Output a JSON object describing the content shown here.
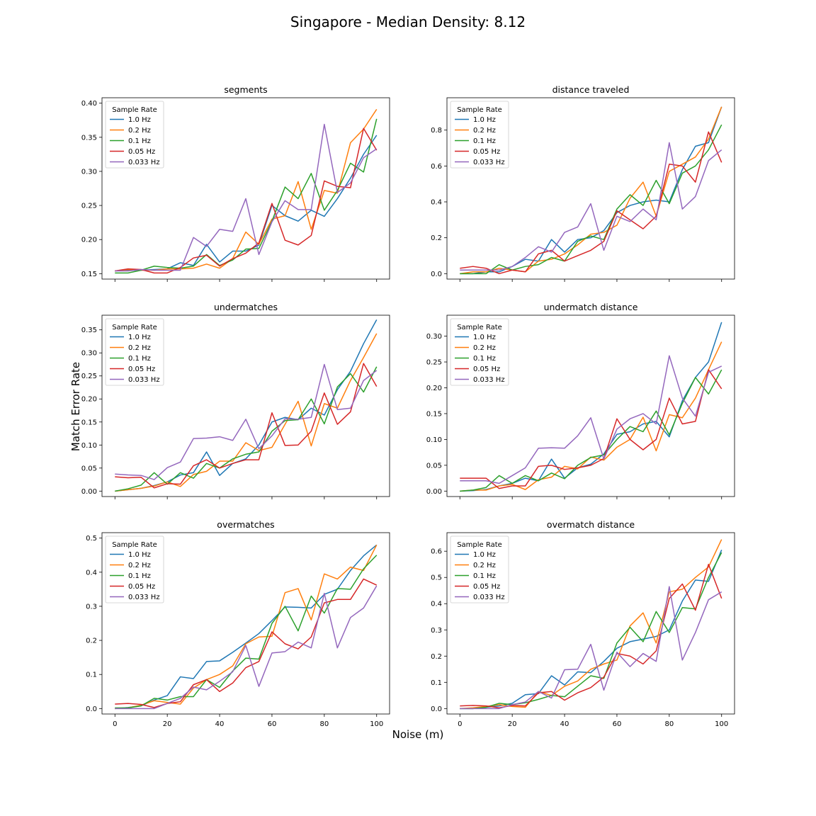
{
  "figure": {
    "title": "Singapore - Median Density: 8.12",
    "xlabel": "Noise (m)",
    "ylabel": "Match Error Rate"
  },
  "colors": {
    "1.0 Hz": "#1f77b4",
    "0.2 Hz": "#ff7f0e",
    "0.1 Hz": "#2ca02c",
    "0.05 Hz": "#d62728",
    "0.033 Hz": "#9467bd"
  },
  "chart_data": [
    {
      "type": "line",
      "title": "segments",
      "x": [
        0,
        5,
        10,
        15,
        20,
        25,
        30,
        35,
        40,
        45,
        50,
        55,
        60,
        65,
        70,
        75,
        80,
        85,
        90,
        95,
        100
      ],
      "xlim": [
        0,
        100
      ],
      "xticks": [
        0,
        20,
        40,
        60,
        80,
        100
      ],
      "ylim": [
        0.15,
        0.4
      ],
      "yticks": [
        "0.15",
        "0.20",
        "0.25",
        "0.30",
        "0.35",
        "0.40"
      ],
      "legend": {
        "title": "Sample Rate",
        "loc": "upper-left"
      },
      "series": [
        {
          "name": "1.0 Hz",
          "values": [
            0.154,
            0.155,
            0.155,
            0.156,
            0.157,
            0.166,
            0.162,
            0.193,
            0.167,
            0.183,
            0.183,
            0.192,
            0.25,
            0.235,
            0.227,
            0.243,
            0.234,
            0.26,
            0.29,
            0.325,
            0.353
          ]
        },
        {
          "name": "0.2 Hz",
          "values": [
            0.154,
            0.156,
            0.155,
            0.155,
            0.157,
            0.157,
            0.158,
            0.164,
            0.158,
            0.172,
            0.211,
            0.193,
            0.23,
            0.235,
            0.285,
            0.215,
            0.272,
            0.268,
            0.342,
            0.362,
            0.391
          ]
        },
        {
          "name": "0.1 Hz",
          "values": [
            0.151,
            0.151,
            0.155,
            0.161,
            0.159,
            0.158,
            0.161,
            0.178,
            0.162,
            0.17,
            0.186,
            0.187,
            0.227,
            0.277,
            0.26,
            0.297,
            0.243,
            0.272,
            0.312,
            0.299,
            0.377
          ]
        },
        {
          "name": "0.05 Hz",
          "values": [
            0.154,
            0.157,
            0.156,
            0.151,
            0.151,
            0.159,
            0.173,
            0.177,
            0.161,
            0.172,
            0.18,
            0.195,
            0.253,
            0.199,
            0.192,
            0.206,
            0.286,
            0.278,
            0.276,
            0.363,
            0.331
          ]
        },
        {
          "name": "0.033 Hz",
          "values": [
            0.154,
            0.154,
            0.156,
            0.155,
            0.155,
            0.155,
            0.203,
            0.19,
            0.215,
            0.212,
            0.26,
            0.178,
            0.226,
            0.257,
            0.244,
            0.244,
            0.369,
            0.269,
            0.283,
            0.32,
            0.333
          ]
        }
      ]
    },
    {
      "type": "line",
      "title": "distance traveled",
      "x": [
        0,
        5,
        10,
        15,
        20,
        25,
        30,
        35,
        40,
        45,
        50,
        55,
        60,
        65,
        70,
        75,
        80,
        85,
        90,
        95,
        100
      ],
      "xlim": [
        0,
        100
      ],
      "xticks": [
        0,
        20,
        40,
        60,
        80,
        100
      ],
      "ylim": [
        0.0,
        0.95
      ],
      "yticks": [
        "0.0",
        "0.2",
        "0.4",
        "0.6",
        "0.8"
      ],
      "legend": {
        "title": "Sample Rate",
        "loc": "upper-left"
      },
      "series": [
        {
          "name": "1.0 Hz",
          "values": [
            0.0,
            0.0,
            0.01,
            0.01,
            0.04,
            0.08,
            0.07,
            0.19,
            0.12,
            0.19,
            0.2,
            0.24,
            0.34,
            0.38,
            0.4,
            0.41,
            0.4,
            0.58,
            0.71,
            0.73,
            0.93
          ]
        },
        {
          "name": "0.2 Hz",
          "values": [
            0.0,
            0.01,
            0.01,
            0.03,
            0.02,
            0.01,
            0.07,
            0.08,
            0.11,
            0.16,
            0.22,
            0.23,
            0.27,
            0.42,
            0.51,
            0.32,
            0.57,
            0.61,
            0.65,
            0.75,
            0.93
          ]
        },
        {
          "name": "0.1 Hz",
          "values": [
            0.0,
            0.0,
            0.0,
            0.05,
            0.02,
            0.04,
            0.05,
            0.09,
            0.07,
            0.18,
            0.21,
            0.19,
            0.36,
            0.44,
            0.38,
            0.52,
            0.39,
            0.56,
            0.6,
            0.69,
            0.83
          ]
        },
        {
          "name": "0.05 Hz",
          "values": [
            0.03,
            0.04,
            0.03,
            0.0,
            0.02,
            0.01,
            0.11,
            0.13,
            0.07,
            0.1,
            0.13,
            0.18,
            0.35,
            0.3,
            0.25,
            0.32,
            0.61,
            0.6,
            0.51,
            0.79,
            0.62
          ]
        },
        {
          "name": "0.033 Hz",
          "values": [
            0.02,
            0.02,
            0.02,
            0.02,
            0.04,
            0.09,
            0.15,
            0.12,
            0.23,
            0.26,
            0.39,
            0.13,
            0.32,
            0.29,
            0.36,
            0.3,
            0.73,
            0.36,
            0.43,
            0.63,
            0.69
          ]
        }
      ]
    },
    {
      "type": "line",
      "title": "undermatches",
      "x": [
        0,
        5,
        10,
        15,
        20,
        25,
        30,
        35,
        40,
        45,
        50,
        55,
        60,
        65,
        70,
        75,
        80,
        85,
        90,
        95,
        100
      ],
      "xlim": [
        0,
        100
      ],
      "xticks": [
        0,
        20,
        40,
        60,
        80,
        100
      ],
      "ylim": [
        0.0,
        0.37
      ],
      "yticks": [
        "0.00",
        "0.05",
        "0.10",
        "0.15",
        "0.20",
        "0.25",
        "0.30",
        "0.35"
      ],
      "legend": {
        "title": "Sample Rate",
        "loc": "upper-left"
      },
      "series": [
        {
          "name": "1.0 Hz",
          "values": [
            0.0,
            0.003,
            0.006,
            0.012,
            0.02,
            0.035,
            0.04,
            0.085,
            0.034,
            0.06,
            0.07,
            0.1,
            0.15,
            0.16,
            0.155,
            0.18,
            0.165,
            0.22,
            0.26,
            0.32,
            0.372
          ]
        },
        {
          "name": "0.2 Hz",
          "values": [
            0.0,
            0.003,
            0.006,
            0.011,
            0.02,
            0.01,
            0.036,
            0.043,
            0.065,
            0.065,
            0.105,
            0.088,
            0.095,
            0.145,
            0.195,
            0.098,
            0.19,
            0.18,
            0.24,
            0.29,
            0.342
          ]
        },
        {
          "name": "0.1 Hz",
          "values": [
            0.0,
            0.005,
            0.013,
            0.04,
            0.015,
            0.04,
            0.028,
            0.06,
            0.05,
            0.07,
            0.08,
            0.085,
            0.13,
            0.153,
            0.155,
            0.2,
            0.146,
            0.226,
            0.255,
            0.215,
            0.27
          ]
        },
        {
          "name": "0.05 Hz",
          "values": [
            0.031,
            0.029,
            0.03,
            0.007,
            0.016,
            0.015,
            0.055,
            0.068,
            0.05,
            0.06,
            0.068,
            0.068,
            0.17,
            0.099,
            0.1,
            0.13,
            0.213,
            0.145,
            0.172,
            0.277,
            0.227
          ]
        },
        {
          "name": "0.033 Hz",
          "values": [
            0.037,
            0.035,
            0.034,
            0.025,
            0.051,
            0.063,
            0.114,
            0.115,
            0.118,
            0.11,
            0.156,
            0.092,
            0.12,
            0.157,
            0.156,
            0.16,
            0.275,
            0.177,
            0.18,
            0.24,
            0.262
          ]
        }
      ]
    },
    {
      "type": "line",
      "title": "undermatch distance",
      "x": [
        0,
        5,
        10,
        15,
        20,
        25,
        30,
        35,
        40,
        45,
        50,
        55,
        60,
        65,
        70,
        75,
        80,
        85,
        90,
        95,
        100
      ],
      "xlim": [
        0,
        100
      ],
      "xticks": [
        0,
        20,
        40,
        60,
        80,
        100
      ],
      "ylim": [
        0.0,
        0.33
      ],
      "yticks": [
        "0.00",
        "0.05",
        "0.10",
        "0.15",
        "0.20",
        "0.25",
        "0.30"
      ],
      "legend": {
        "title": "Sample Rate",
        "loc": "upper-left"
      },
      "series": [
        {
          "name": "1.0 Hz",
          "values": [
            0.0,
            0.001,
            0.003,
            0.01,
            0.015,
            0.025,
            0.02,
            0.062,
            0.025,
            0.045,
            0.052,
            0.072,
            0.11,
            0.115,
            0.13,
            0.135,
            0.105,
            0.175,
            0.22,
            0.25,
            0.327
          ]
        },
        {
          "name": "0.2 Hz",
          "values": [
            0.0,
            0.002,
            0.002,
            0.01,
            0.013,
            0.003,
            0.022,
            0.027,
            0.048,
            0.043,
            0.066,
            0.06,
            0.085,
            0.1,
            0.143,
            0.078,
            0.148,
            0.142,
            0.18,
            0.235,
            0.289
          ]
        },
        {
          "name": "0.1 Hz",
          "values": [
            0.0,
            0.002,
            0.007,
            0.03,
            0.015,
            0.03,
            0.02,
            0.035,
            0.024,
            0.05,
            0.065,
            0.07,
            0.1,
            0.125,
            0.115,
            0.155,
            0.109,
            0.17,
            0.22,
            0.188,
            0.235
          ]
        },
        {
          "name": "0.05 Hz",
          "values": [
            0.025,
            0.025,
            0.025,
            0.005,
            0.01,
            0.01,
            0.048,
            0.05,
            0.042,
            0.045,
            0.05,
            0.063,
            0.14,
            0.1,
            0.08,
            0.1,
            0.18,
            0.13,
            0.135,
            0.235,
            0.198
          ]
        },
        {
          "name": "0.033 Hz",
          "values": [
            0.02,
            0.02,
            0.02,
            0.015,
            0.03,
            0.045,
            0.083,
            0.084,
            0.083,
            0.107,
            0.142,
            0.062,
            0.12,
            0.14,
            0.15,
            0.13,
            0.262,
            0.18,
            0.145,
            0.23,
            0.242
          ]
        }
      ]
    },
    {
      "type": "line",
      "title": "overmatches",
      "x": [
        0,
        5,
        10,
        15,
        20,
        25,
        30,
        35,
        40,
        45,
        50,
        55,
        60,
        65,
        70,
        75,
        80,
        85,
        90,
        95,
        100
      ],
      "xlim": [
        0,
        100
      ],
      "xticks": [
        0,
        20,
        40,
        60,
        80,
        100
      ],
      "ylim": [
        0.0,
        0.5
      ],
      "yticks": [
        "0.0",
        "0.1",
        "0.2",
        "0.3",
        "0.4",
        "0.5"
      ],
      "legend": {
        "title": "Sample Rate",
        "loc": "upper-left"
      },
      "series": [
        {
          "name": "1.0 Hz",
          "values": [
            0.0,
            0.003,
            0.008,
            0.025,
            0.038,
            0.093,
            0.088,
            0.138,
            0.14,
            0.165,
            0.192,
            0.22,
            0.258,
            0.298,
            0.297,
            0.295,
            0.335,
            0.35,
            0.405,
            0.448,
            0.48
          ]
        },
        {
          "name": "0.2 Hz",
          "values": [
            0.0,
            0.002,
            0.01,
            0.023,
            0.018,
            0.013,
            0.06,
            0.085,
            0.1,
            0.125,
            0.19,
            0.21,
            0.212,
            0.34,
            0.352,
            0.26,
            0.395,
            0.38,
            0.415,
            0.405,
            0.48
          ]
        },
        {
          "name": "0.1 Hz",
          "values": [
            0.002,
            0.002,
            0.008,
            0.03,
            0.025,
            0.035,
            0.035,
            0.085,
            0.062,
            0.11,
            0.148,
            0.145,
            0.25,
            0.3,
            0.228,
            0.33,
            0.28,
            0.352,
            0.35,
            0.41,
            0.45
          ]
        },
        {
          "name": "0.05 Hz",
          "values": [
            0.013,
            0.015,
            0.012,
            0.003,
            0.015,
            0.02,
            0.07,
            0.085,
            0.05,
            0.075,
            0.12,
            0.138,
            0.225,
            0.19,
            0.175,
            0.21,
            0.31,
            0.32,
            0.32,
            0.38,
            0.362
          ]
        },
        {
          "name": "0.033 Hz",
          "values": [
            0.0,
            0.0,
            0.0,
            0.0,
            0.015,
            0.03,
            0.063,
            0.055,
            0.08,
            0.108,
            0.185,
            0.065,
            0.163,
            0.167,
            0.195,
            0.178,
            0.338,
            0.178,
            0.267,
            0.295,
            0.36
          ]
        }
      ]
    },
    {
      "type": "line",
      "title": "overmatch distance",
      "x": [
        0,
        5,
        10,
        15,
        20,
        25,
        30,
        35,
        40,
        45,
        50,
        55,
        60,
        65,
        70,
        75,
        80,
        85,
        90,
        95,
        100
      ],
      "xlim": [
        0,
        100
      ],
      "xticks": [
        0,
        20,
        40,
        60,
        80,
        100
      ],
      "ylim": [
        0.0,
        0.65
      ],
      "yticks": [
        "0.0",
        "0.1",
        "0.2",
        "0.3",
        "0.4",
        "0.5",
        "0.6"
      ],
      "legend": {
        "title": "Sample Rate",
        "loc": "upper-left"
      },
      "series": [
        {
          "name": "1.0 Hz",
          "values": [
            0.0,
            0.0,
            0.005,
            0.01,
            0.02,
            0.053,
            0.057,
            0.125,
            0.09,
            0.14,
            0.137,
            0.18,
            0.23,
            0.255,
            0.265,
            0.275,
            0.3,
            0.41,
            0.49,
            0.485,
            0.605
          ]
        },
        {
          "name": "0.2 Hz",
          "values": [
            0.0,
            0.003,
            0.008,
            0.015,
            0.008,
            0.005,
            0.065,
            0.05,
            0.085,
            0.105,
            0.15,
            0.17,
            0.185,
            0.315,
            0.365,
            0.25,
            0.445,
            0.455,
            0.5,
            0.54,
            0.645
          ]
        },
        {
          "name": "0.1 Hz",
          "values": [
            0.0,
            0.0,
            0.005,
            0.02,
            0.015,
            0.022,
            0.035,
            0.05,
            0.045,
            0.085,
            0.125,
            0.115,
            0.25,
            0.31,
            0.255,
            0.37,
            0.29,
            0.385,
            0.38,
            0.5,
            0.595
          ]
        },
        {
          "name": "0.05 Hz",
          "values": [
            0.01,
            0.012,
            0.01,
            0.003,
            0.012,
            0.01,
            0.06,
            0.065,
            0.032,
            0.06,
            0.08,
            0.12,
            0.21,
            0.2,
            0.17,
            0.22,
            0.42,
            0.475,
            0.375,
            0.55,
            0.42
          ]
        },
        {
          "name": "0.033 Hz",
          "values": [
            0.0,
            0.0,
            0.0,
            0.0,
            0.015,
            0.025,
            0.065,
            0.04,
            0.148,
            0.15,
            0.245,
            0.07,
            0.215,
            0.16,
            0.21,
            0.18,
            0.465,
            0.185,
            0.29,
            0.415,
            0.445
          ]
        }
      ]
    }
  ]
}
